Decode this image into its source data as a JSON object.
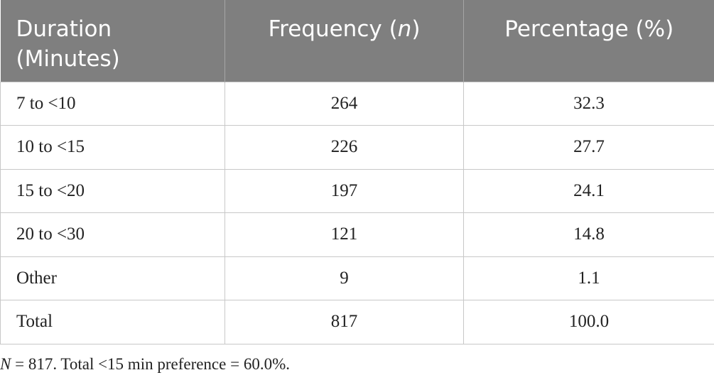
{
  "table": {
    "header": [
      [
        "Duration (Minutes)"
      ],
      [
        "Frequency (",
        "n",
        ")"
      ],
      [
        "Percentage (%)"
      ]
    ],
    "rows": [
      [
        "7 to <10",
        "264",
        "32.3"
      ],
      [
        "10 to <15",
        "226",
        "27.7"
      ],
      [
        "15 to <20",
        "197",
        "24.1"
      ],
      [
        "20 to <30",
        "121",
        "14.8"
      ],
      [
        "Other",
        "9",
        "1.1"
      ],
      [
        "Total",
        "817",
        "100.0"
      ]
    ]
  },
  "note": [
    "N",
    " = 817. Total <15 min preference = 60.0%."
  ]
}
